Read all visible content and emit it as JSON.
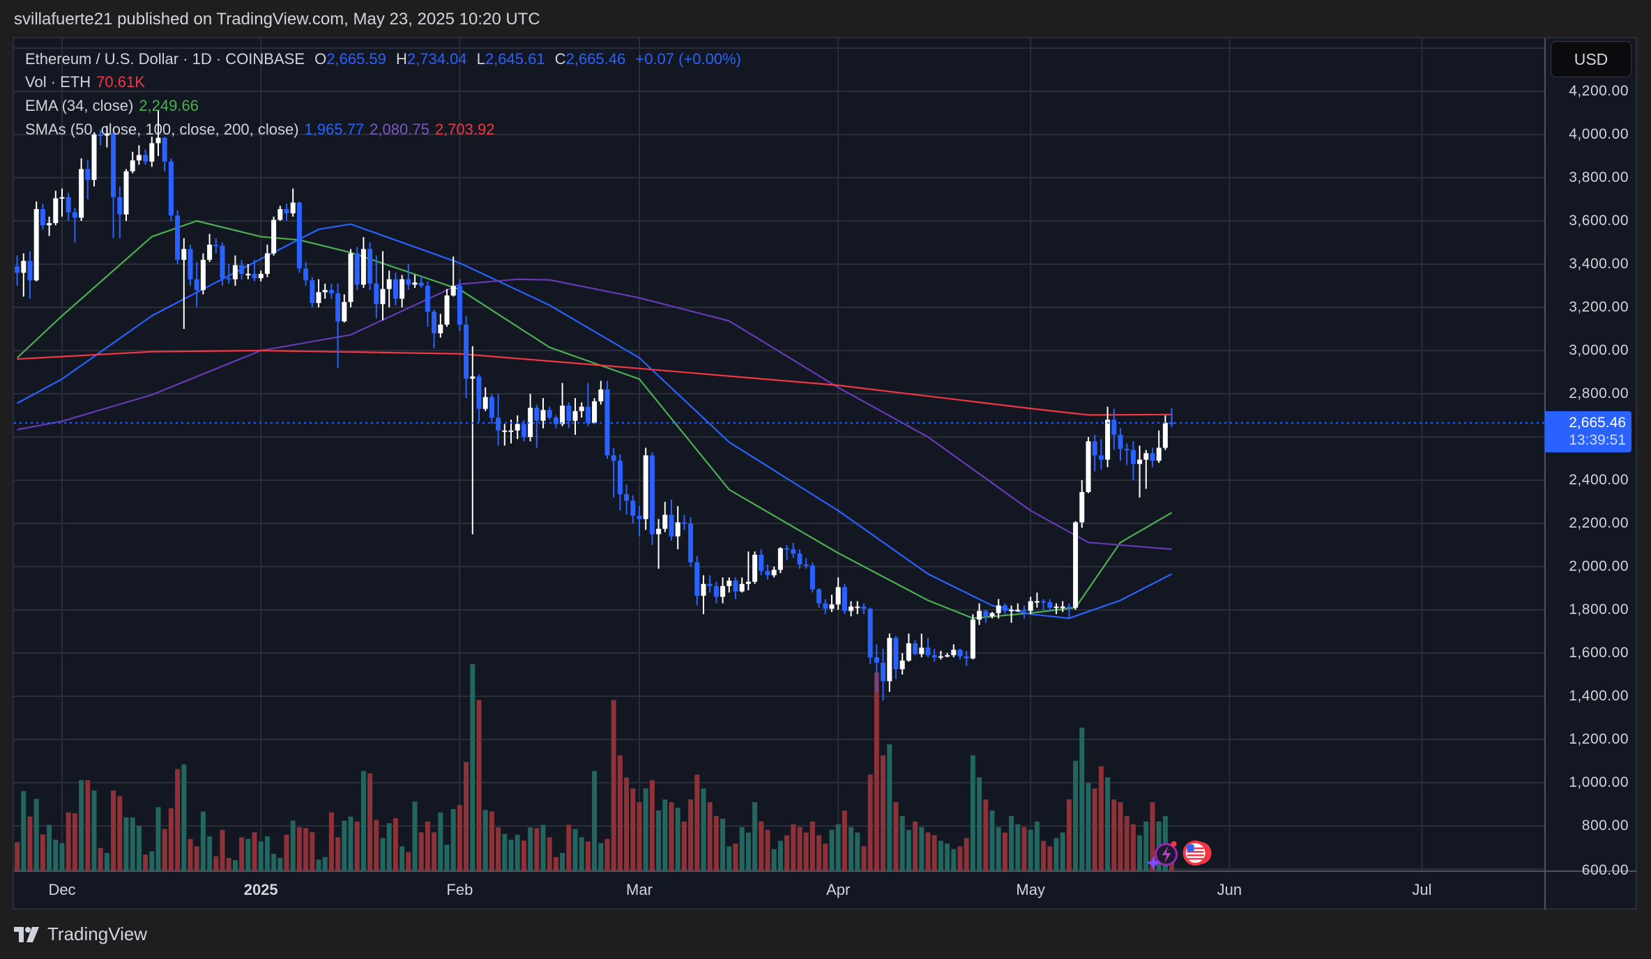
{
  "header": {
    "published": "svillafuerte21 published on TradingView.com, May 23, 2025 10:20 UTC"
  },
  "legend": {
    "symbol": "Ethereum / U.S. Dollar · 1D · COINBASE",
    "o_label": "O",
    "o": "2,665.59",
    "h_label": "H",
    "h": "2,734.04",
    "l_label": "L",
    "l": "2,645.61",
    "c_label": "C",
    "c": "2,665.46",
    "change": "+0.07 (+0.00%)",
    "vol_label": "Vol · ETH",
    "vol": "70.61K",
    "ema_label": "EMA (34, close)",
    "ema": "2,249.66",
    "sma_label": "SMAs (50, close, 100, close, 200, close)",
    "sma50": "1,965.77",
    "sma100": "2,080.75",
    "sma200": "2,703.92"
  },
  "price_axis": {
    "currency": "USD",
    "labels": [
      "4,200.00",
      "4,000.00",
      "3,800.00",
      "3,600.00",
      "3,400.00",
      "3,200.00",
      "3,000.00",
      "2,800.00",
      "2,400.00",
      "2,200.00",
      "2,000.00",
      "1,800.00",
      "1,600.00",
      "1,400.00",
      "1,200.00",
      "1,000.00",
      "800.00",
      "600.00"
    ],
    "last_price": "2,665.46",
    "countdown": "13:39:51"
  },
  "time_axis": {
    "labels": [
      "Dec",
      "2025",
      "Feb",
      "Mar",
      "Apr",
      "May",
      "Jun",
      "Jul"
    ]
  },
  "footer": {
    "brand": "TradingView"
  },
  "colors": {
    "up": "#ffffff",
    "down": "#2962ff",
    "vol_up": "#22665f",
    "vol_down": "#8c3238",
    "ema34": "#4caf50",
    "sma50": "#2962ff",
    "sma100": "#673ab7",
    "sma200": "#f23645",
    "background": "#131722",
    "grid": "#2a2e39"
  },
  "chart_data": {
    "type": "candlestick",
    "interval": "1D",
    "start_date": "2024-11-24",
    "ylim": [
      600,
      4400
    ],
    "grid": true,
    "first_open": 3390,
    "close": [
      3360,
      3415,
      3325,
      3655,
      3580,
      3590,
      3705,
      3710,
      3640,
      3615,
      3840,
      3790,
      4000,
      3995,
      4005,
      3710,
      3630,
      3830,
      3880,
      3905,
      3875,
      3960,
      3985,
      3875,
      3625,
      3420,
      3470,
      3330,
      3280,
      3420,
      3490,
      3485,
      3335,
      3330,
      3395,
      3355,
      3355,
      3335,
      3355,
      3450,
      3605,
      3655,
      3635,
      3685,
      3380,
      3325,
      3220,
      3270,
      3280,
      3265,
      3135,
      3225,
      3450,
      3305,
      3470,
      3310,
      3215,
      3285,
      3330,
      3240,
      3330,
      3305,
      3315,
      3300,
      3180,
      3080,
      3120,
      3255,
      3300,
      3120,
      2870,
      2880,
      2730,
      2785,
      2690,
      2630,
      2630,
      2630,
      2660,
      2600,
      2735,
      2675,
      2725,
      2690,
      2660,
      2745,
      2675,
      2720,
      2740,
      2665,
      2765,
      2820,
      2515,
      2490,
      2335,
      2305,
      2235,
      2220,
      2515,
      2150,
      2175,
      2240,
      2140,
      2205,
      2200,
      2020,
      1865,
      1920,
      1910,
      1860,
      1910,
      1935,
      1885,
      1920,
      1930,
      2055,
      1980,
      1960,
      1985,
      2085,
      2080,
      2060,
      2010,
      2005,
      1895,
      1830,
      1805,
      1825,
      1905,
      1795,
      1815,
      1815,
      1805,
      1580,
      1555,
      1470,
      1670,
      1525,
      1565,
      1645,
      1595,
      1625,
      1590,
      1580,
      1585,
      1590,
      1615,
      1585,
      1575,
      1755,
      1795,
      1770,
      1785,
      1820,
      1795,
      1800,
      1800,
      1795,
      1840,
      1840,
      1835,
      1810,
      1815,
      1815,
      1810,
      2205,
      2345,
      2580,
      2515,
      2495,
      2680,
      2610,
      2545,
      2540,
      2475,
      2495,
      2525,
      2490,
      2550,
      2665.59,
      2665.46
    ],
    "high": [
      3440,
      3450,
      3460,
      3690,
      3680,
      3620,
      3740,
      3750,
      3730,
      3660,
      3890,
      3880,
      4010,
      4020,
      4040,
      4010,
      3760,
      3840,
      3920,
      3950,
      3930,
      3990,
      4110,
      3990,
      3890,
      3650,
      3520,
      3490,
      3410,
      3450,
      3540,
      3520,
      3500,
      3400,
      3440,
      3420,
      3400,
      3420,
      3370,
      3490,
      3620,
      3670,
      3680,
      3750,
      3690,
      3410,
      3340,
      3330,
      3310,
      3310,
      3310,
      3260,
      3470,
      3480,
      3525,
      3500,
      3440,
      3460,
      3370,
      3360,
      3350,
      3400,
      3350,
      3345,
      3320,
      3190,
      3170,
      3285,
      3435,
      3330,
      3160,
      3020,
      2890,
      2830,
      2800,
      2800,
      2660,
      2680,
      2700,
      2680,
      2800,
      2750,
      2780,
      2740,
      2700,
      2850,
      2760,
      2780,
      2760,
      2850,
      2780,
      2860,
      2860,
      2550,
      2520,
      2380,
      2330,
      2280,
      2550,
      2530,
      2220,
      2300,
      2310,
      2280,
      2240,
      2230,
      2050,
      1960,
      1960,
      1930,
      1950,
      1950,
      1950,
      1950,
      2070,
      2070,
      2080,
      2010,
      2000,
      2090,
      2100,
      2110,
      2080,
      2040,
      2020,
      1900,
      1850,
      1870,
      1950,
      1920,
      1840,
      1840,
      1830,
      1810,
      1640,
      1620,
      1690,
      1680,
      1600,
      1690,
      1660,
      1690,
      1670,
      1620,
      1610,
      1600,
      1640,
      1620,
      1610,
      1780,
      1830,
      1800,
      1790,
      1850,
      1830,
      1820,
      1830,
      1820,
      1860,
      1880,
      1850,
      1850,
      1830,
      1840,
      1830,
      2210,
      2400,
      2600,
      2610,
      2590,
      2740,
      2730,
      2640,
      2570,
      2580,
      2560,
      2540,
      2550,
      2630,
      2700,
      2734.04
    ],
    "low": [
      3300,
      3250,
      3240,
      3320,
      3560,
      3530,
      3580,
      3620,
      3600,
      3500,
      3600,
      3700,
      3760,
      3950,
      3940,
      3520,
      3520,
      3600,
      3820,
      3860,
      3860,
      3850,
      3900,
      3830,
      3600,
      3400,
      3100,
      3300,
      3200,
      3260,
      3410,
      3450,
      3300,
      3310,
      3300,
      3330,
      3330,
      3320,
      3320,
      3340,
      3440,
      3600,
      3600,
      3620,
      3360,
      3300,
      3200,
      3200,
      3240,
      3240,
      2920,
      3130,
      3200,
      3280,
      3290,
      3280,
      3150,
      3140,
      3200,
      3210,
      3200,
      3280,
      3290,
      3290,
      3110,
      3010,
      3060,
      3110,
      3250,
      3090,
      2780,
      2150,
      2670,
      2720,
      2660,
      2560,
      2560,
      2570,
      2590,
      2580,
      2580,
      2550,
      2640,
      2680,
      2640,
      2650,
      2640,
      2610,
      2690,
      2650,
      2660,
      2750,
      2500,
      2320,
      2260,
      2240,
      2200,
      2140,
      2170,
      2100,
      1990,
      2160,
      2120,
      2080,
      2170,
      2000,
      1820,
      1780,
      1880,
      1830,
      1830,
      1880,
      1850,
      1880,
      1890,
      1920,
      1960,
      1940,
      1950,
      1970,
      2030,
      2040,
      1990,
      1990,
      1880,
      1810,
      1780,
      1790,
      1800,
      1780,
      1770,
      1780,
      1780,
      1550,
      1420,
      1380,
      1420,
      1480,
      1500,
      1560,
      1590,
      1580,
      1580,
      1560,
      1570,
      1580,
      1580,
      1570,
      1540,
      1570,
      1730,
      1740,
      1760,
      1760,
      1780,
      1740,
      1790,
      1760,
      1780,
      1810,
      1800,
      1790,
      1780,
      1790,
      1760,
      1800,
      2180,
      2340,
      2440,
      2450,
      2460,
      2540,
      2490,
      2470,
      2400,
      2320,
      2360,
      2460,
      2480,
      2540,
      2645.61
    ],
    "volume_k": [
      105,
      290,
      198,
      262,
      133,
      168,
      114,
      102,
      213,
      210,
      330,
      330,
      292,
      84,
      66,
      292,
      272,
      195,
      195,
      164,
      60,
      72,
      232,
      153,
      228,
      370,
      387,
      117,
      90,
      216,
      126,
      54,
      150,
      48,
      40,
      123,
      117,
      141,
      108,
      126,
      63,
      48,
      132,
      183,
      159,
      156,
      141,
      42,
      51,
      213,
      123,
      183,
      198,
      180,
      363,
      354,
      186,
      120,
      174,
      192,
      90,
      69,
      252,
      141,
      180,
      141,
      213,
      96,
      225,
      240,
      396,
      750,
      620,
      222,
      216,
      159,
      135,
      114,
      132,
      111,
      159,
      156,
      168,
      123,
      51,
      66,
      168,
      153,
      123,
      108,
      363,
      102,
      117,
      620,
      420,
      340,
      300,
      250,
      300,
      330,
      220,
      260,
      250,
      230,
      180,
      260,
      350,
      300,
      250,
      200,
      190,
      90,
      100,
      160,
      140,
      250,
      180,
      150,
      80,
      110,
      130,
      170,
      160,
      140,
      180,
      130,
      100,
      150,
      170,
      220,
      160,
      140,
      90,
      350,
      720,
      420,
      460,
      250,
      200,
      150,
      180,
      160,
      140,
      130,
      110,
      100,
      80,
      90,
      120,
      420,
      340,
      260,
      220,
      160,
      140,
      200,
      170,
      160,
      150,
      180,
      110,
      90,
      120,
      140,
      260,
      400,
      520,
      320,
      300,
      380,
      340,
      260,
      250,
      200,
      170,
      130,
      180,
      250,
      180,
      200,
      70.61
    ],
    "indicators": [
      {
        "name": "EMA (34, close)",
        "key": "ema34",
        "points": [
          [
            "2024-11-24",
            2966
          ],
          [
            "2024-12-01",
            3161
          ],
          [
            "2024-12-15",
            3527
          ],
          [
            "2024-12-22",
            3600
          ],
          [
            "2025-01-01",
            3527
          ],
          [
            "2025-01-07",
            3512
          ],
          [
            "2025-01-15",
            3454
          ],
          [
            "2025-02-01",
            3283
          ],
          [
            "2025-02-15",
            3015
          ],
          [
            "2025-03-01",
            2868
          ],
          [
            "2025-03-15",
            2356
          ],
          [
            "2025-04-01",
            2063
          ],
          [
            "2025-04-15",
            1844
          ],
          [
            "2025-04-22",
            1761
          ],
          [
            "2025-05-01",
            1785
          ],
          [
            "2025-05-08",
            1810
          ],
          [
            "2025-05-15",
            2112
          ],
          [
            "2025-05-23",
            2249.66
          ]
        ]
      },
      {
        "name": "SMA 50",
        "key": "sma50",
        "points": [
          [
            "2024-11-24",
            2756
          ],
          [
            "2024-12-01",
            2868
          ],
          [
            "2024-12-15",
            3161
          ],
          [
            "2025-01-01",
            3424
          ],
          [
            "2025-01-10",
            3561
          ],
          [
            "2025-01-15",
            3585
          ],
          [
            "2025-02-01",
            3405
          ],
          [
            "2025-02-15",
            3210
          ],
          [
            "2025-03-01",
            2966
          ],
          [
            "2025-03-15",
            2576
          ],
          [
            "2025-04-01",
            2259
          ],
          [
            "2025-04-15",
            1966
          ],
          [
            "2025-04-25",
            1820
          ],
          [
            "2025-05-01",
            1780
          ],
          [
            "2025-05-07",
            1761
          ],
          [
            "2025-05-15",
            1844
          ],
          [
            "2025-05-23",
            1965.77
          ]
        ]
      },
      {
        "name": "SMA 100",
        "key": "sma100",
        "points": [
          [
            "2024-11-24",
            2634
          ],
          [
            "2024-12-01",
            2673
          ],
          [
            "2024-12-15",
            2795
          ],
          [
            "2025-01-01",
            3000
          ],
          [
            "2025-01-15",
            3073
          ],
          [
            "2025-02-01",
            3307
          ],
          [
            "2025-02-10",
            3330
          ],
          [
            "2025-02-15",
            3327
          ],
          [
            "2025-03-01",
            3244
          ],
          [
            "2025-03-15",
            3137
          ],
          [
            "2025-04-01",
            2829
          ],
          [
            "2025-04-15",
            2600
          ],
          [
            "2025-05-01",
            2259
          ],
          [
            "2025-05-10",
            2112
          ],
          [
            "2025-05-23",
            2080.75
          ]
        ]
      },
      {
        "name": "SMA 200",
        "key": "sma200",
        "points": [
          [
            "2024-11-24",
            2961
          ],
          [
            "2024-12-15",
            2995
          ],
          [
            "2025-01-01",
            3000
          ],
          [
            "2025-02-01",
            2985
          ],
          [
            "2025-03-01",
            2917
          ],
          [
            "2025-04-01",
            2839
          ],
          [
            "2025-05-01",
            2732
          ],
          [
            "2025-05-10",
            2702
          ],
          [
            "2025-05-23",
            2703.92
          ]
        ]
      }
    ]
  }
}
